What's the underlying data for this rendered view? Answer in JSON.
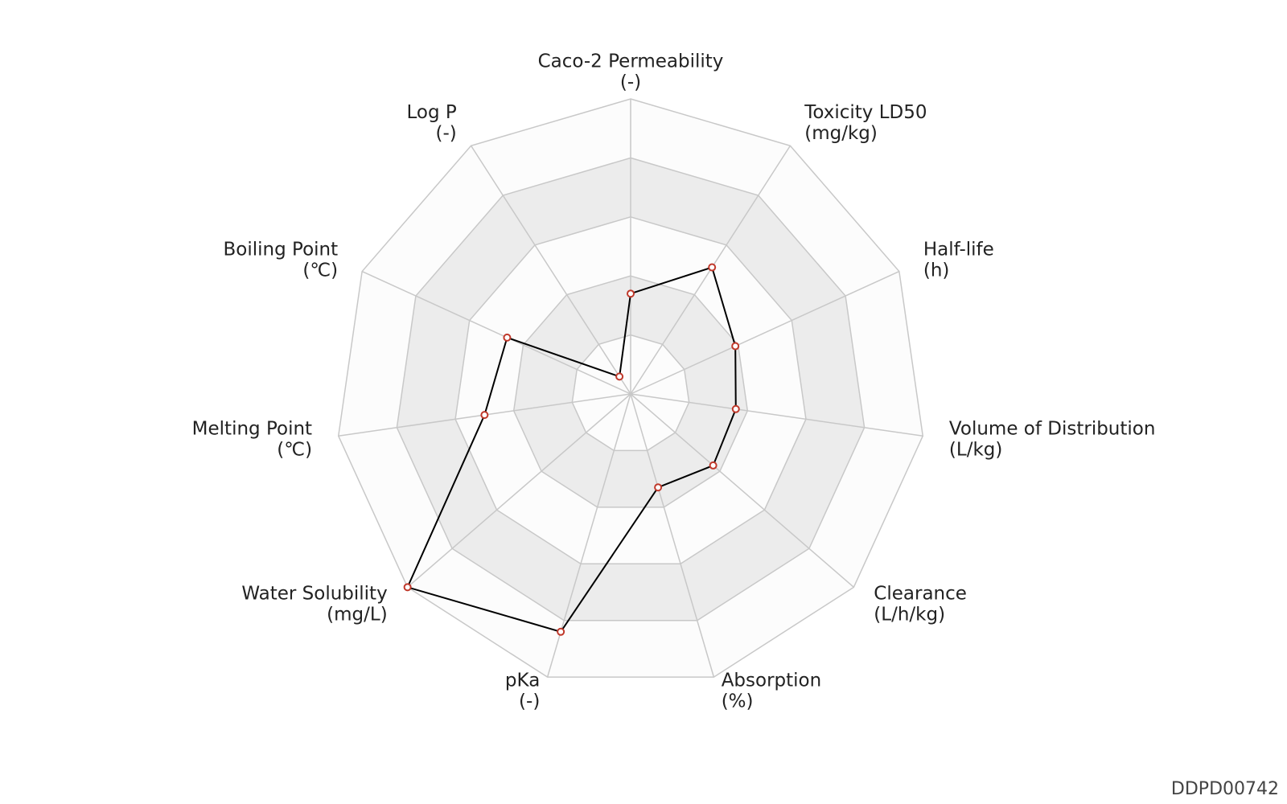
{
  "chart_data": {
    "type": "radar",
    "categories": [
      {
        "name": "Caco-2 Permeability",
        "unit": "(-)"
      },
      {
        "name": "Toxicity LD50",
        "unit": "(mg/kg)"
      },
      {
        "name": "Half-life",
        "unit": "(h)"
      },
      {
        "name": "Volume of Distribution",
        "unit": "(L/kg)"
      },
      {
        "name": "Clearance",
        "unit": "(L/h/kg)"
      },
      {
        "name": "Absorption",
        "unit": "(%)"
      },
      {
        "name": "pKa",
        "unit": "(-)"
      },
      {
        "name": "Water Solubility",
        "unit": "(mg/L)"
      },
      {
        "name": "Melting Point",
        "unit": "(℃)"
      },
      {
        "name": "Boiling Point",
        "unit": "(℃)"
      },
      {
        "name": "Log P",
        "unit": "(-)"
      }
    ],
    "values": [
      0.34,
      0.51,
      0.39,
      0.36,
      0.37,
      0.33,
      0.84,
      1.0,
      0.5,
      0.46,
      0.07
    ],
    "color": "#000000",
    "marker_color": "#c0392b",
    "ylim": [
      0,
      1
    ],
    "yticks": [
      0.2,
      0.4,
      0.6,
      0.8,
      1.0
    ],
    "band_colors": [
      "#fcfcfc",
      "#ececec"
    ],
    "grid": true
  },
  "watermark": "DDPD00742"
}
